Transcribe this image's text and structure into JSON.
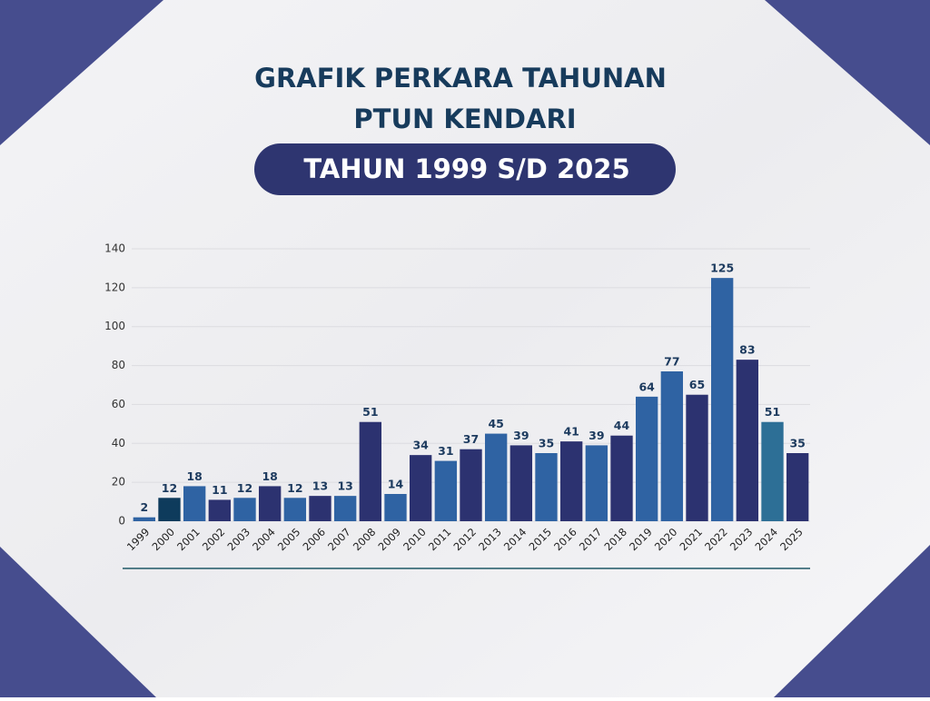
{
  "chart_data": {
    "type": "bar",
    "title": "GRAFIK PERKARA TAHUNAN",
    "subtitle": "PTUN KENDARI",
    "period": "TAHUN 1999 S/D 2025",
    "categories": [
      "1999",
      "2000",
      "2001",
      "2002",
      "2003",
      "2004",
      "2005",
      "2006",
      "2007",
      "2008",
      "2009",
      "2010",
      "2011",
      "2012",
      "2013",
      "2014",
      "2015",
      "2016",
      "2017",
      "2018",
      "2019",
      "2020",
      "2021",
      "2022",
      "2023",
      "2024",
      "2025"
    ],
    "values": [
      2,
      12,
      18,
      11,
      12,
      18,
      12,
      13,
      13,
      51,
      14,
      34,
      31,
      37,
      45,
      39,
      35,
      41,
      39,
      44,
      64,
      77,
      65,
      125,
      83,
      51,
      35
    ],
    "colors": [
      "#2f63a3",
      "#0e3b5c",
      "#2f63a3",
      "#2c3270",
      "#2f63a3",
      "#2c3270",
      "#2f63a3",
      "#2c3270",
      "#2f63a3",
      "#2c3270",
      "#2f63a3",
      "#2c3270",
      "#2f63a3",
      "#2c3270",
      "#2f63a3",
      "#2c3270",
      "#2f63a3",
      "#2c3270",
      "#2f63a3",
      "#2c3270",
      "#2f63a3",
      "#2f63a3",
      "#2c3270",
      "#2f63a3",
      "#2c3270",
      "#2d6f96",
      "#2c3270"
    ],
    "ylim": [
      0,
      140
    ],
    "yticks": [
      0,
      20,
      40,
      60,
      80,
      100,
      120,
      140
    ],
    "grid": true
  }
}
